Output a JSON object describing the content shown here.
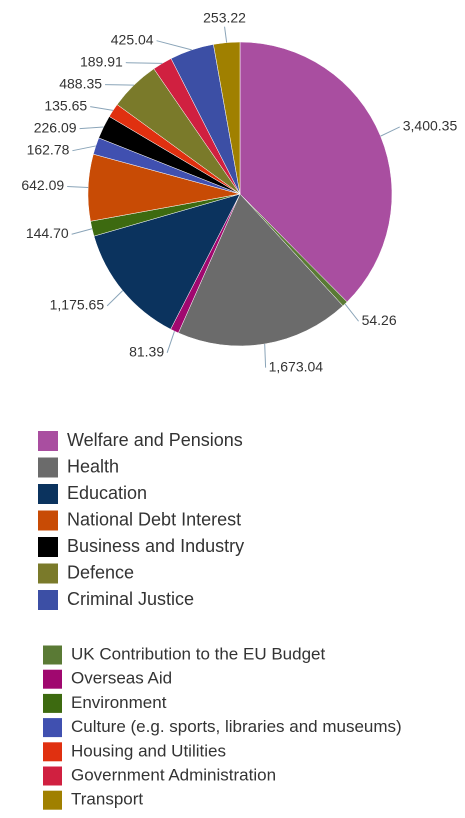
{
  "chart_data": {
    "type": "pie",
    "groups": [
      {
        "categories": [
          "Welfare and Pensions",
          "Health",
          "Education",
          "National Debt Interest",
          "Business and Industry",
          "Defence",
          "Criminal Justice"
        ],
        "values": [
          3400.35,
          1673.04,
          1175.65,
          642.09,
          226.09,
          488.35,
          425.04
        ],
        "value_labels": [
          "3,400.35",
          "1,673.04",
          "1,175.65",
          "642.09",
          "226.09",
          "488.35",
          "425.04"
        ],
        "colors": [
          "#a94ea0",
          "#6b6b6b",
          "#0b335e",
          "#c84b05",
          "#000000",
          "#7a7a2a",
          "#3c4fa5"
        ]
      },
      {
        "categories": [
          "UK Contribution to the EU Budget",
          "Overseas Aid",
          "Environment",
          "Culture (e.g. sports, libraries and museums)",
          "Housing and Utilities",
          "Government Administration",
          "Transport"
        ],
        "values": [
          54.26,
          81.39,
          144.7,
          162.78,
          135.65,
          189.91,
          253.22
        ],
        "value_labels": [
          "54.26",
          "81.39",
          "144.70",
          "162.78",
          "135.65",
          "189.91",
          "253.22"
        ],
        "colors": [
          "#5a7a35",
          "#a0086f",
          "#3d6a10",
          "#4050b0",
          "#e03010",
          "#d02040",
          "#a08000"
        ]
      }
    ]
  }
}
